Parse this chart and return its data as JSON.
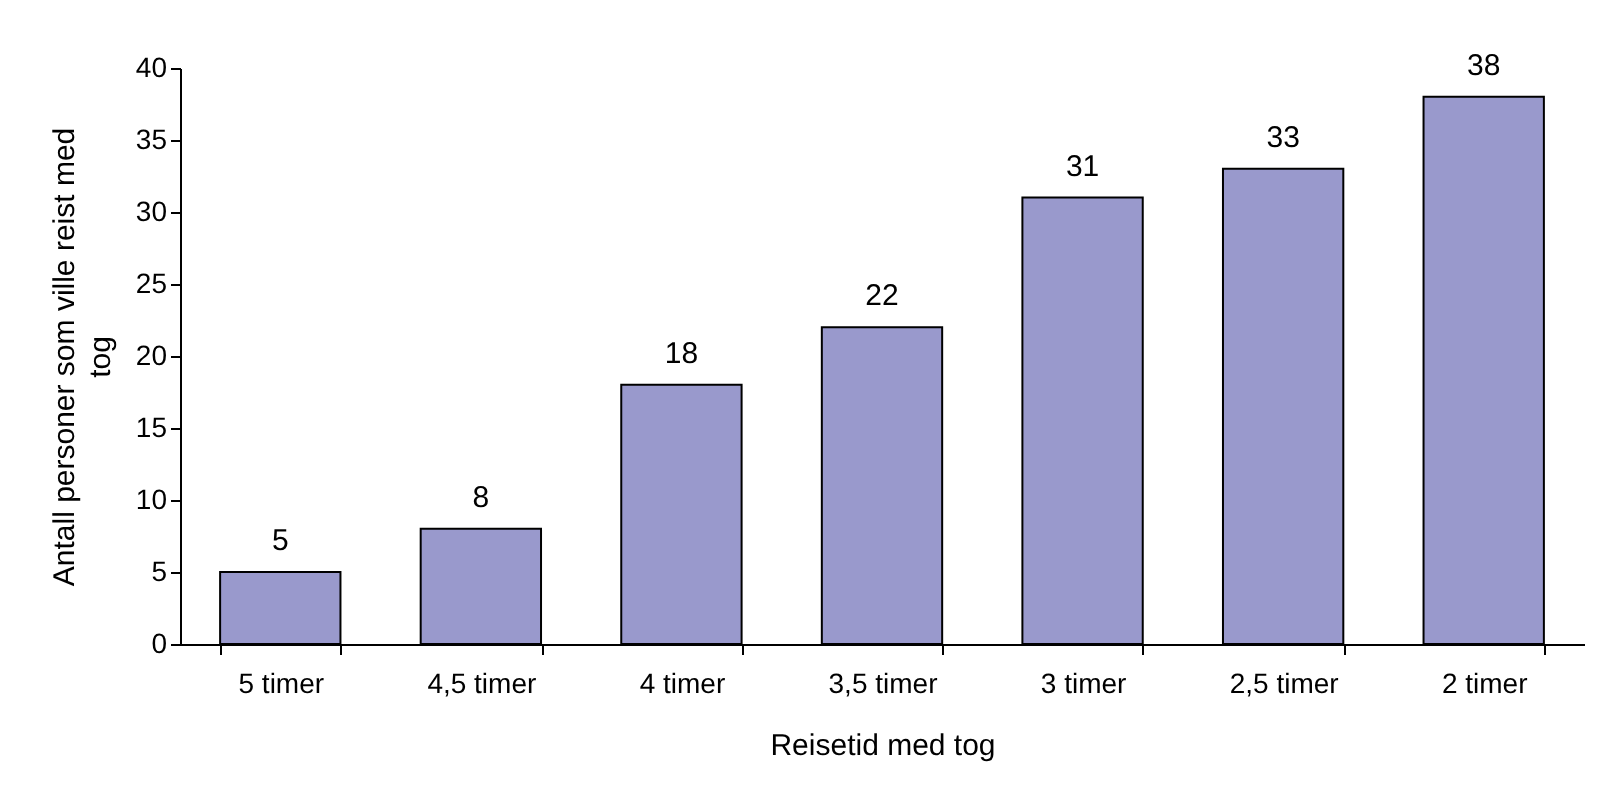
{
  "chart_data": {
    "type": "bar",
    "xlabel": "Reisetid med tog",
    "ylabel": "Antall personer som ville reist med tog",
    "categories": [
      "5 timer",
      "4,5 timer",
      "4 timer",
      "3,5 timer",
      "3 timer",
      "2,5 timer",
      "2 timer"
    ],
    "values": [
      5,
      8,
      18,
      22,
      31,
      33,
      38
    ],
    "color": "#9999cc",
    "ylim": [
      0,
      40
    ],
    "yticks": [
      0,
      5,
      10,
      15,
      20,
      25,
      30,
      35,
      40
    ],
    "grid": false,
    "data_labels": true
  }
}
